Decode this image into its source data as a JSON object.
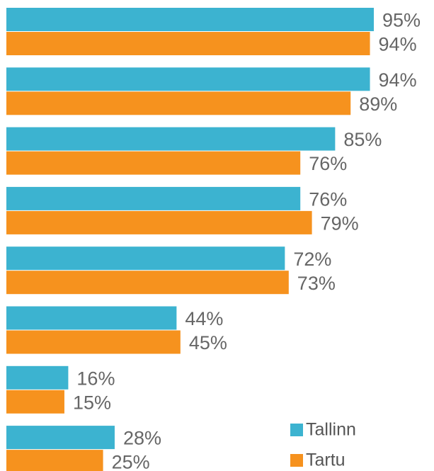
{
  "chart_data": {
    "type": "bar",
    "orientation": "horizontal",
    "categories": [
      null,
      null,
      null,
      null,
      null,
      null,
      null,
      null
    ],
    "series": [
      {
        "name": "Tallinn",
        "color": "#3cb3d0",
        "values": [
          95,
          94,
          85,
          76,
          72,
          44,
          16,
          28
        ],
        "value_labels": [
          "95%",
          "94%",
          "85%",
          "76%",
          "72%",
          "44%",
          "16%",
          "28%"
        ]
      },
      {
        "name": "Tartu",
        "color": "#f6921e",
        "values": [
          94,
          89,
          76,
          79,
          73,
          45,
          15,
          25
        ],
        "value_labels": [
          "94%",
          "89%",
          "76%",
          "79%",
          "73%",
          "45%",
          "15%",
          "25%"
        ]
      }
    ],
    "legend": "bottom-right"
  }
}
